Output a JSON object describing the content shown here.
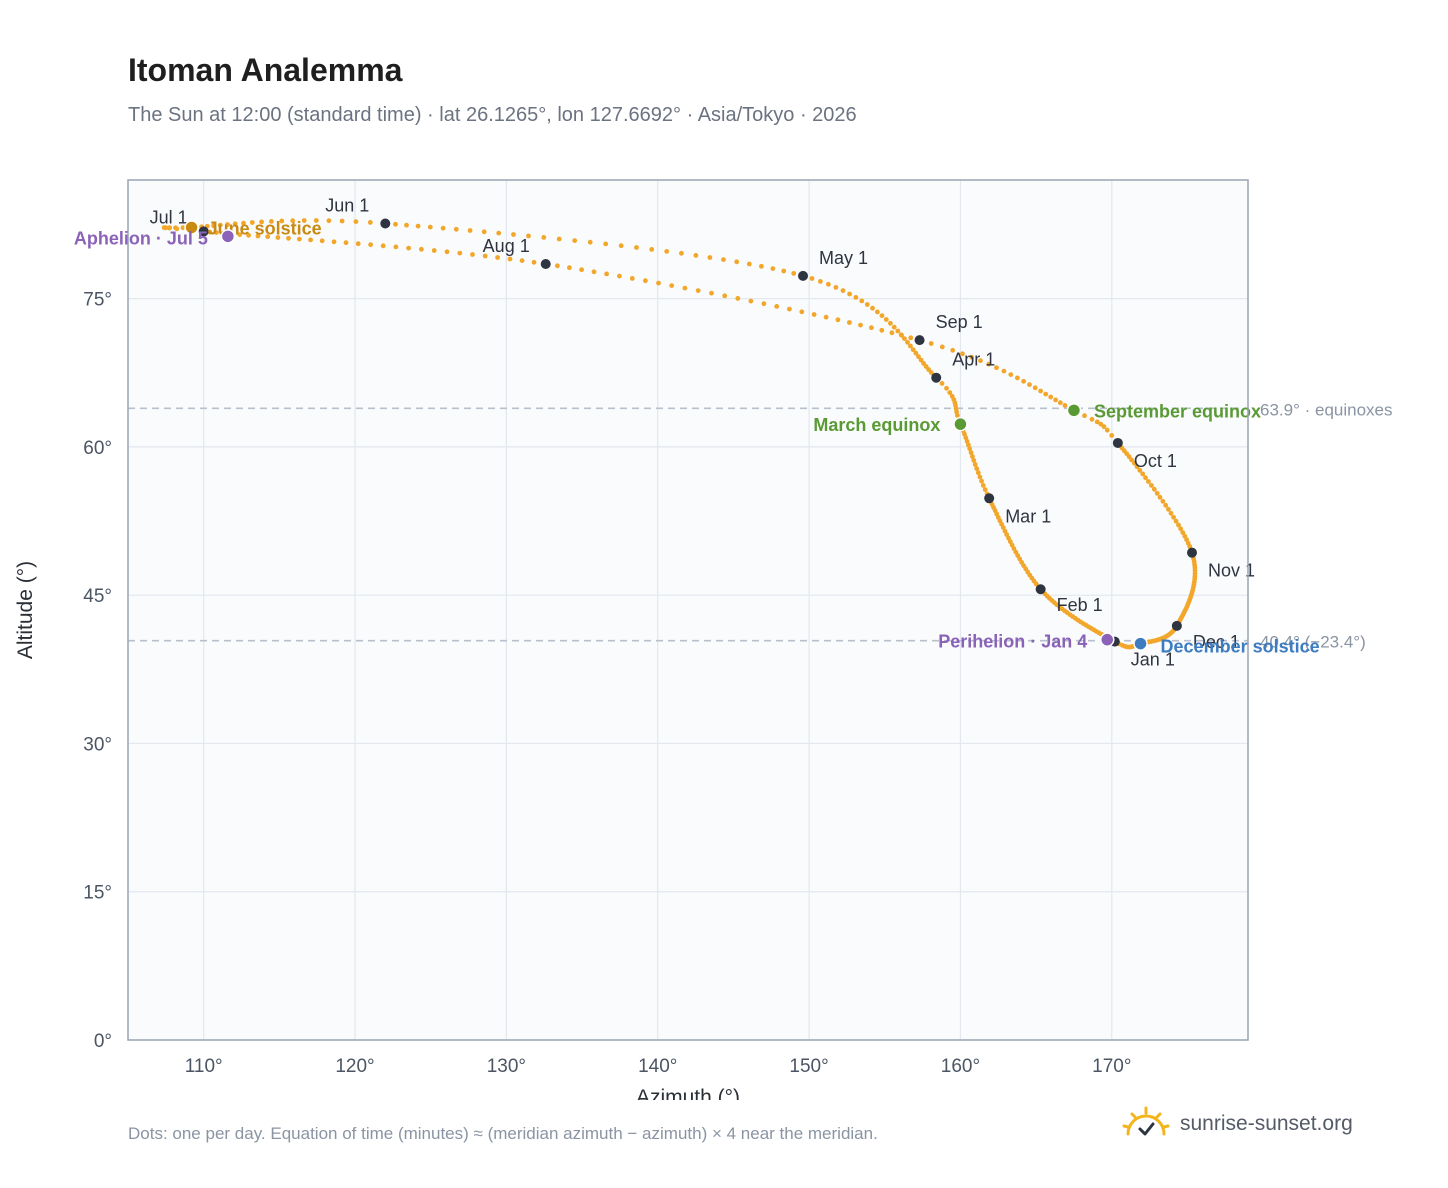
{
  "title": "Itoman Analemma",
  "subtitle": "The Sun at 12:00 (standard time) · lat 26.1265°, lon 127.6692° · Asia/Tokyo · 2026",
  "footnote": "Dots: one per day. Equation of time (minutes) ≈ (meridian azimuth − azimuth) × 4 near the meridian.",
  "brand": {
    "text": "sunrise-sunset.org",
    "icon": "sun-checkmark-icon"
  },
  "colors": {
    "curve": "#f2a62a",
    "month_dot": "#2f3540",
    "solstice_june": "#c98a12",
    "solstice_december": "#3d7cc0",
    "equinox": "#5a9a34",
    "apsis": "#8a63b8",
    "reference_line": "#b8c0cc",
    "plot_background": "#f9fbfd",
    "grid": "#e3e8ee",
    "frame": "#9aa4b2"
  },
  "chart_data": {
    "type": "scatter",
    "xlabel": "Azimuth (°)",
    "ylabel": "Altitude (°)",
    "xlim": [
      105,
      179
    ],
    "ylim": [
      0,
      87
    ],
    "xticks": [
      110,
      120,
      130,
      140,
      150,
      160,
      170
    ],
    "xtick_labels": [
      "110°",
      "120°",
      "130°",
      "140°",
      "150°",
      "160°",
      "170°"
    ],
    "yticks": [
      0,
      15,
      30,
      45,
      60,
      75
    ],
    "ytick_labels": [
      "0°",
      "15°",
      "30°",
      "45°",
      "60°",
      "75°"
    ],
    "grid": true,
    "legend": "none",
    "reference_lines": [
      {
        "altitude": 63.9,
        "label": "63.9° · equinoxes"
      },
      {
        "altitude": 40.4,
        "label": "40.4° (−23.4°)"
      }
    ],
    "month_markers": [
      {
        "label": "Jan 1",
        "az": 170.2,
        "alt": 40.3
      },
      {
        "label": "Feb 1",
        "az": 165.3,
        "alt": 45.6
      },
      {
        "label": "Mar 1",
        "az": 161.9,
        "alt": 54.8
      },
      {
        "label": "Apr 1",
        "az": 158.4,
        "alt": 67.0
      },
      {
        "label": "May 1",
        "az": 149.6,
        "alt": 77.3
      },
      {
        "label": "Jun 1",
        "az": 122.0,
        "alt": 82.6
      },
      {
        "label": "Jul 1",
        "az": 110.0,
        "alt": 81.8
      },
      {
        "label": "Aug 1",
        "az": 132.6,
        "alt": 78.5
      },
      {
        "label": "Sep 1",
        "az": 157.3,
        "alt": 70.8
      },
      {
        "label": "Oct 1",
        "az": 170.4,
        "alt": 60.4
      },
      {
        "label": "Nov 1",
        "az": 175.3,
        "alt": 49.3
      },
      {
        "label": "Dec 1",
        "az": 174.3,
        "alt": 41.9
      }
    ],
    "events": [
      {
        "label": "June solstice",
        "az": 109.2,
        "alt": 82.2,
        "kind": "solstice_june"
      },
      {
        "label": "December solstice",
        "az": 171.9,
        "alt": 40.1,
        "kind": "solstice_december"
      },
      {
        "label": "March equinox",
        "az": 160.0,
        "alt": 62.3,
        "kind": "equinox"
      },
      {
        "label": "September equinox",
        "az": 167.5,
        "alt": 63.7,
        "kind": "equinox"
      },
      {
        "label": "Aphelion · Jul 5",
        "az": 111.6,
        "alt": 81.3,
        "kind": "apsis"
      },
      {
        "label": "Perihelion · Jan 4",
        "az": 169.7,
        "alt": 40.5,
        "kind": "apsis"
      }
    ]
  }
}
